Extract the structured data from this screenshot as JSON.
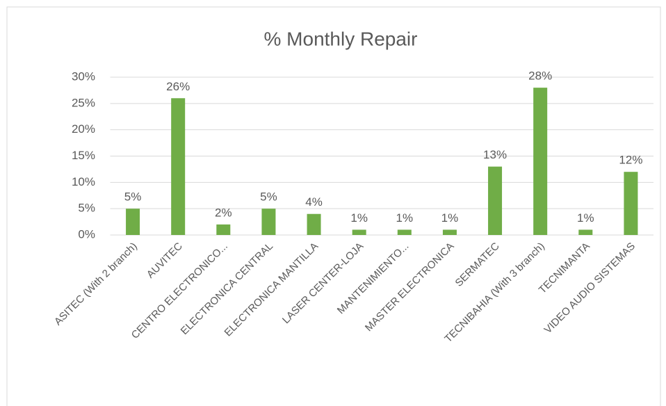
{
  "chart_data": {
    "type": "bar",
    "title": "%  Monthly Repair",
    "categories": [
      "ASITEC (With 2 branch)",
      "AUVITEC",
      "CENTRO ELECTRONICO...",
      "ELECTRONICA CENTRAL",
      "ELECTRONICA MANTILLA",
      "LASER CENTER-LOJA",
      "MANTENIMIENTO...",
      "MASTER ELECTRONICA",
      "SERMATEC",
      "TECNIBAHIA (With 3 branch)",
      "TECNIMANTA",
      "VIDEO AUDIO SISTEMAS"
    ],
    "values": [
      5,
      26,
      2,
      5,
      4,
      1,
      1,
      1,
      13,
      28,
      1,
      12
    ],
    "value_labels": [
      "5%",
      "26%",
      "2%",
      "5%",
      "4%",
      "1%",
      "1%",
      "1%",
      "13%",
      "28%",
      "1%",
      "12%"
    ],
    "color": "#70ad47",
    "ylim": [
      0,
      30
    ],
    "yticks": [
      {
        "value": 0,
        "label": "0%"
      },
      {
        "value": 5,
        "label": "5%"
      },
      {
        "value": 10,
        "label": "10%"
      },
      {
        "value": 15,
        "label": "15%"
      },
      {
        "value": 20,
        "label": "20%"
      },
      {
        "value": 25,
        "label": "25%"
      },
      {
        "value": 30,
        "label": "30%"
      }
    ],
    "grid": true
  }
}
